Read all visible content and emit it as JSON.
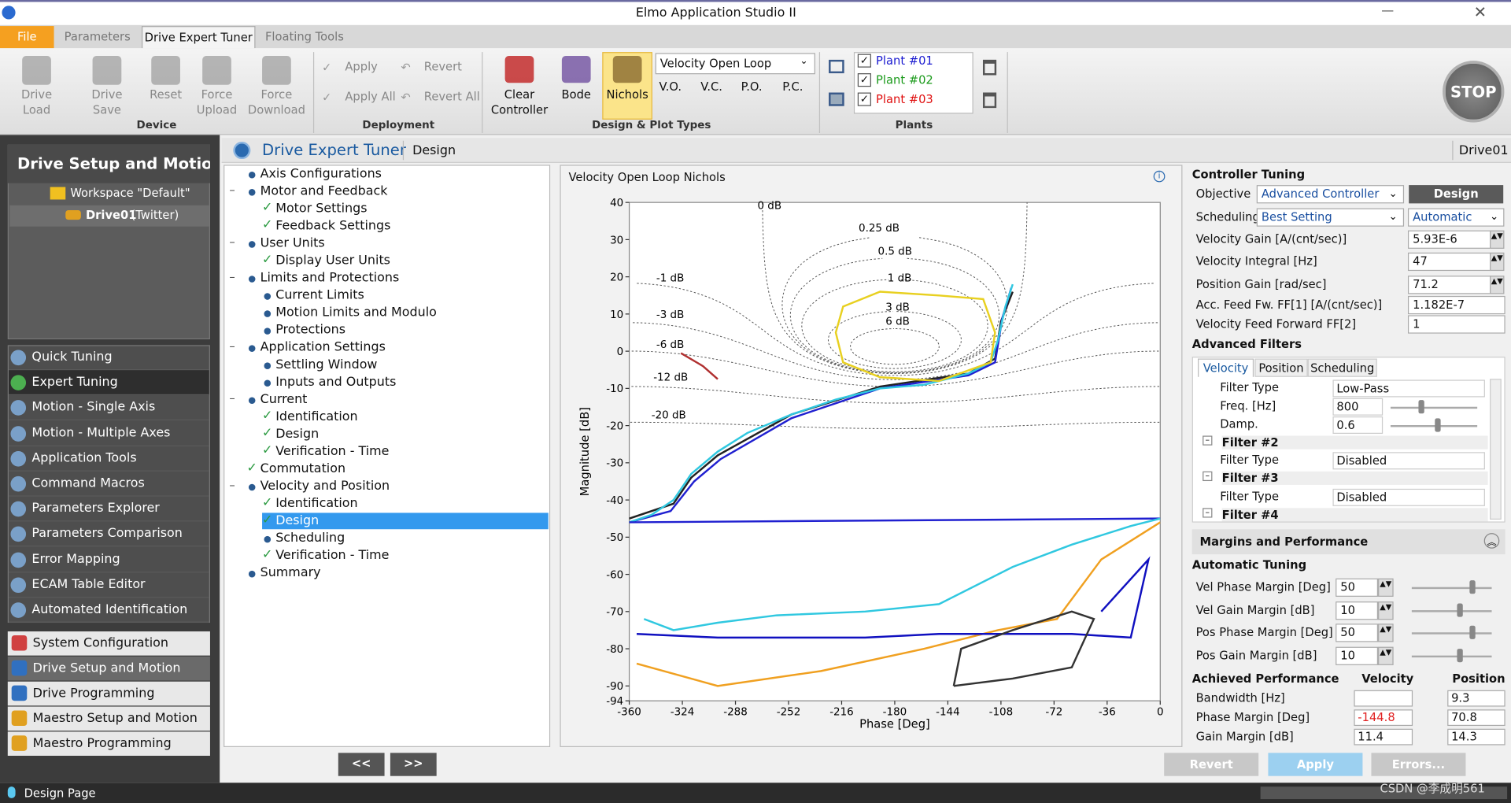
{
  "title": "Elmo Application Studio II",
  "tabs": [
    "File",
    "Parameters",
    "Drive Expert Tuner",
    "Floating Tools"
  ],
  "ribbon": {
    "device": {
      "label": "Device",
      "buttons": [
        "Drive Load",
        "Drive Save",
        "Reset",
        "Force Upload",
        "Force Download"
      ]
    },
    "deployment": {
      "label": "Deployment",
      "buttons": [
        "Apply",
        "Apply All",
        "Revert",
        "Revert All"
      ]
    },
    "design": {
      "label": "Design & Plot Types",
      "buttons": [
        "Clear Controller",
        "Bode",
        "Nichols"
      ],
      "plot_select": "Velocity Open Loop",
      "plot_options": [
        "V.O.",
        "V.C.",
        "P.O.",
        "P.C."
      ]
    },
    "plants": {
      "label": "Plants",
      "items": [
        {
          "name": "Plant #01",
          "color": "#1a1ad0"
        },
        {
          "name": "Plant #02",
          "color": "#1a9a1a"
        },
        {
          "name": "Plant #03",
          "color": "#e01010"
        }
      ]
    },
    "stop": "STOP"
  },
  "sidebar": {
    "title": "Drive Setup and Motion",
    "workspace": "Workspace \"Default\"",
    "drive": "Drive01",
    "drive_note": "(Twitter)",
    "nav": [
      "Quick Tuning",
      "Expert Tuning",
      "Motion - Single Axis",
      "Motion - Multiple Axes",
      "Application Tools",
      "Command Macros",
      "Parameters Explorer",
      "Parameters Comparison",
      "Error Mapping",
      "ECAM Table Editor",
      "Automated Identification"
    ],
    "nav_selected": 1,
    "sections": [
      "System Configuration",
      "Drive Setup and Motion",
      "Drive Programming",
      "Maestro Setup and Motion",
      "Maestro Programming"
    ],
    "section_selected": 1
  },
  "header": {
    "title": "Drive Expert Tuner",
    "crumb": "Design",
    "drive": "Drive01"
  },
  "tree": [
    {
      "label": "Axis Configurations",
      "level": 0,
      "mark": "dot"
    },
    {
      "label": "Motor and Feedback",
      "level": 0,
      "mark": "dot",
      "open": true
    },
    {
      "label": "Motor Settings",
      "level": 1,
      "mark": "check"
    },
    {
      "label": "Feedback Settings",
      "level": 1,
      "mark": "check"
    },
    {
      "label": "User Units",
      "level": 0,
      "mark": "dot",
      "open": true
    },
    {
      "label": "Display User Units",
      "level": 1,
      "mark": "check"
    },
    {
      "label": "Limits and Protections",
      "level": 0,
      "mark": "dot",
      "open": true
    },
    {
      "label": "Current Limits",
      "level": 1,
      "mark": "dot"
    },
    {
      "label": "Motion Limits and Modulo",
      "level": 1,
      "mark": "dot"
    },
    {
      "label": "Protections",
      "level": 1,
      "mark": "dot"
    },
    {
      "label": "Application Settings",
      "level": 0,
      "mark": "dot",
      "open": true
    },
    {
      "label": "Settling Window",
      "level": 1,
      "mark": "dot"
    },
    {
      "label": "Inputs and Outputs",
      "level": 1,
      "mark": "dot"
    },
    {
      "label": "Current",
      "level": 0,
      "mark": "dot",
      "open": true
    },
    {
      "label": "Identification",
      "level": 1,
      "mark": "check"
    },
    {
      "label": "Design",
      "level": 1,
      "mark": "check"
    },
    {
      "label": "Verification - Time",
      "level": 1,
      "mark": "check"
    },
    {
      "label": "Commutation",
      "level": 0,
      "mark": "check"
    },
    {
      "label": "Velocity and Position",
      "level": 0,
      "mark": "dot",
      "open": true
    },
    {
      "label": "Identification",
      "level": 1,
      "mark": "check"
    },
    {
      "label": "Design",
      "level": 1,
      "mark": "check",
      "selected": true
    },
    {
      "label": "Scheduling",
      "level": 1,
      "mark": "dot"
    },
    {
      "label": "Verification - Time",
      "level": 1,
      "mark": "check"
    },
    {
      "label": "Summary",
      "level": 0,
      "mark": "dot"
    }
  ],
  "nav_buttons": [
    "<<",
    ">>"
  ],
  "chart_data": {
    "type": "line",
    "title": "Velocity Open Loop Nichols",
    "xlabel": "Phase [Deg]",
    "ylabel": "Magnitude [dB]",
    "xlim": [
      -360,
      0
    ],
    "xticks": [
      -360,
      -324,
      -288,
      -252,
      -216,
      -180,
      -144,
      -108,
      -72,
      -36,
      0
    ],
    "ylim": [
      -94,
      40
    ],
    "yticks": [
      40,
      30,
      20,
      10,
      0,
      -10,
      -20,
      -30,
      -40,
      -50,
      -60,
      -70,
      -80,
      -90,
      -94
    ],
    "grid": true,
    "contours": [
      {
        "value": 0,
        "label": "0 dB"
      },
      {
        "value": 0.25,
        "label": "0.25 dB"
      },
      {
        "value": 0.5,
        "label": "0.5 dB"
      },
      {
        "value": 1,
        "label": "1 dB"
      },
      {
        "value": 3,
        "label": "3 dB"
      },
      {
        "value": 6,
        "label": "6 dB"
      },
      {
        "value": -1,
        "label": "-1 dB"
      },
      {
        "value": -3,
        "label": "-3 dB"
      },
      {
        "value": -6,
        "label": "-6 dB"
      },
      {
        "value": -12,
        "label": "-12 dB"
      },
      {
        "value": -20,
        "label": "-20 dB"
      }
    ],
    "series": [
      {
        "color": "#222222",
        "x": [
          -360,
          -330,
          -318,
          -300,
          -250,
          -190,
          -130,
          -112,
          -108,
          -100
        ],
        "values": [
          -45,
          -41,
          -34,
          -28,
          -17,
          -9.5,
          -6,
          -2,
          8,
          16
        ]
      },
      {
        "color": "#2020d0",
        "x": [
          -360,
          -332,
          -316,
          -298,
          -250,
          -190,
          -130,
          -112,
          -107,
          -101
        ],
        "values": [
          -46,
          -43,
          -35,
          -29,
          -18,
          -10,
          -6.5,
          -3,
          9,
          17
        ]
      },
      {
        "color": "#30c8e0",
        "x": [
          -360,
          -345,
          -330,
          -318,
          -300,
          -280,
          -250,
          -220,
          -190,
          -160,
          -130,
          -115,
          -110,
          -105,
          -100
        ],
        "values": [
          -46,
          -44,
          -40,
          -33,
          -27,
          -22,
          -17,
          -13,
          -10,
          -9,
          -6,
          -3,
          3,
          12,
          18
        ]
      },
      {
        "color": "#e8d020",
        "x": [
          -150,
          -120,
          -112,
          -115,
          -150,
          -190,
          -215,
          -220,
          -215,
          -190,
          -150
        ],
        "values": [
          15,
          14,
          5,
          -3,
          -8,
          -7,
          -3,
          5,
          12,
          16,
          15
        ]
      },
      {
        "color": "#b03030",
        "x": [
          -325,
          -310,
          -300
        ],
        "values": [
          -0.5,
          -4,
          -7.5
        ]
      },
      {
        "color": "#2020d0",
        "x": [
          -360,
          0
        ],
        "values": [
          -46,
          -45
        ]
      },
      {
        "color": "#f0a020",
        "x": [
          -355,
          -300,
          -230,
          -160,
          -110,
          -70,
          -40,
          0
        ],
        "values": [
          -84,
          -90,
          -86,
          -80,
          -75,
          -72,
          -56,
          -46
        ]
      },
      {
        "color": "#30c8e0",
        "x": [
          -350,
          -330,
          -300,
          -260,
          -200,
          -150,
          -100,
          -60,
          -20,
          0
        ],
        "values": [
          -72,
          -75,
          -73,
          -71,
          -70,
          -68,
          -58,
          -52,
          -47,
          -45
        ]
      },
      {
        "color": "#1010c0",
        "x": [
          -355,
          -300,
          -200,
          -150,
          -100,
          -60,
          -20,
          -8,
          -40
        ],
        "values": [
          -76,
          -77,
          -77,
          -76,
          -76,
          -76,
          -77,
          -56,
          -70
        ]
      },
      {
        "color": "#333333",
        "x": [
          -140,
          -135,
          -100,
          -60,
          -45,
          -60,
          -100,
          -140
        ],
        "values": [
          -90,
          -80,
          -75,
          -70,
          -72,
          -85,
          -88,
          -90
        ]
      }
    ]
  },
  "tuning": {
    "title": "Controller Tuning",
    "design_button": "Design",
    "objective": {
      "label": "Objective",
      "value": "Advanced Controller"
    },
    "scheduling": {
      "label": "Scheduling",
      "value": "Best Setting",
      "value2": "Automatic"
    },
    "rows": [
      {
        "label": "Velocity Gain [A/(cnt/sec)]",
        "value": "5.93E-6"
      },
      {
        "label": "Velocity Integral [Hz]",
        "value": "47"
      },
      {
        "label": "Position Gain [rad/sec]",
        "value": "71.2"
      },
      {
        "label": "Acc. Feed Fw. FF[1] [A/(cnt/sec)]",
        "value": "1.182E-7"
      },
      {
        "label": "Velocity Feed Forward FF[2]",
        "value": "1"
      }
    ],
    "filters_title": "Advanced Filters",
    "filter_tabs": [
      "Velocity",
      "Position",
      "Scheduling"
    ],
    "filters": [
      {
        "label": "Filter Type",
        "value": "Low-Pass"
      },
      {
        "label": "Freq. [Hz]",
        "value": "800"
      },
      {
        "label": "Damp.",
        "value": "0.6"
      },
      {
        "group": "Filter #2"
      },
      {
        "label": "Filter Type",
        "value": "Disabled"
      },
      {
        "group": "Filter #3"
      },
      {
        "label": "Filter Type",
        "value": "Disabled"
      },
      {
        "group": "Filter #4"
      }
    ],
    "margins_title": "Margins and Performance",
    "auto_title": "Automatic Tuning",
    "margins": [
      {
        "label": "Vel Phase Margin [Deg]",
        "value": "50"
      },
      {
        "label": "Vel Gain Margin [dB]",
        "value": "10"
      },
      {
        "label": "Pos Phase Margin [Deg]",
        "value": "50"
      },
      {
        "label": "Pos Gain Margin [dB]",
        "value": "10"
      }
    ],
    "achieved": {
      "title": "Achieved Performance",
      "columns": [
        "Velocity",
        "Position"
      ],
      "rows": [
        {
          "label": "Bandwidth [Hz]",
          "position": "9.3"
        },
        {
          "label": "Phase Margin [Deg]",
          "velocity": "-144.8",
          "position": "70.8"
        },
        {
          "label": "Gain Margin [dB]",
          "velocity": "11.4",
          "position": "14.3"
        }
      ]
    },
    "buttons": [
      "Revert",
      "Apply",
      "Errors..."
    ]
  },
  "status": "Design Page",
  "watermark": "CSDN @李成明561"
}
